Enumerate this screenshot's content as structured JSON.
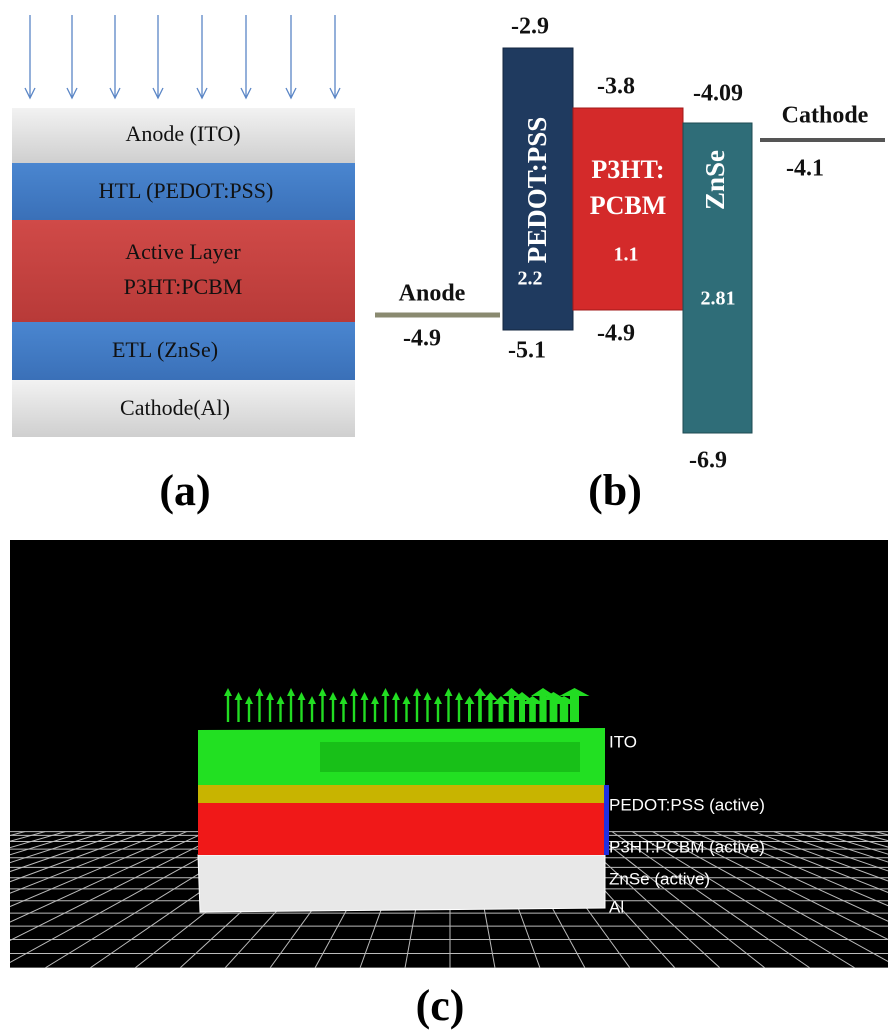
{
  "panel_a": {
    "layers": [
      {
        "lines": [
          "Anode (ITO)"
        ]
      },
      {
        "lines": [
          "HTL (PEDOT:PSS)"
        ]
      },
      {
        "lines": [
          "Active Layer",
          "P3HT:PCBM"
        ]
      },
      {
        "lines": [
          "ETL (ZnSe)"
        ]
      },
      {
        "lines": [
          "Cathode(Al)"
        ]
      }
    ],
    "caption": "(a)"
  },
  "panel_b": {
    "anode": {
      "label": "Anode",
      "level": -4.9
    },
    "pedot": {
      "label": "PEDOT:PSS",
      "lumo": -2.9,
      "homo": -5.1,
      "gap": 2.2
    },
    "p3ht": {
      "label_lines": [
        "P3HT:",
        "PCBM"
      ],
      "lumo": -3.8,
      "homo": -4.9,
      "gap": 1.1
    },
    "znse": {
      "label": "ZnSe",
      "lumo": -4.09,
      "homo": -6.9,
      "gap": 2.81
    },
    "cathode": {
      "label": "Cathode",
      "level": -4.1
    },
    "caption": "(b)"
  },
  "panel_c": {
    "labels": [
      "ITO",
      "PEDOT:PSS (active)",
      "P3HT:PCBM (active)",
      "ZnSe (active)",
      "Al"
    ],
    "caption": "(c)"
  }
}
